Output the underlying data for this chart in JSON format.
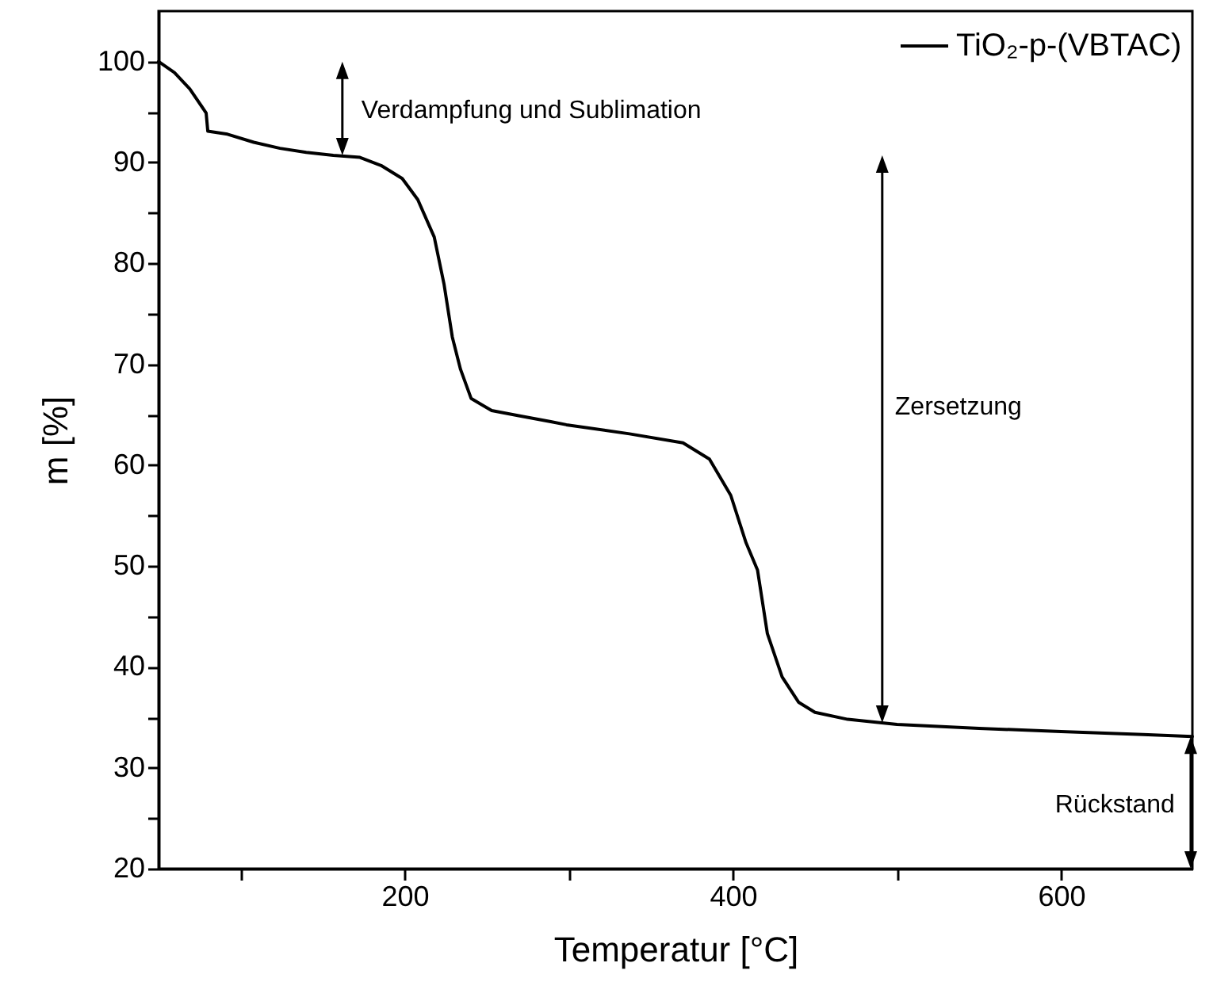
{
  "chart_data": {
    "type": "line",
    "xlabel": "Temperatur [°C]",
    "ylabel": "m [%]",
    "xlim": [
      50,
      680
    ],
    "ylim": [
      20,
      105
    ],
    "xticks": [
      {
        "value": 100,
        "label": null
      },
      200,
      {
        "value": 300,
        "label": null
      },
      400,
      {
        "value": 500,
        "label": null
      },
      600
    ],
    "yticks": [
      20,
      {
        "value": 25,
        "label": null
      },
      30,
      {
        "value": 35,
        "label": null
      },
      40,
      {
        "value": 45,
        "label": null
      },
      50,
      {
        "value": 55,
        "label": null
      },
      60,
      {
        "value": 65,
        "label": null
      },
      70,
      {
        "value": 75,
        "label": null
      },
      80,
      {
        "value": 85,
        "label": null
      },
      90,
      {
        "value": 95,
        "label": null
      },
      100
    ],
    "grid": false,
    "legend": "top right",
    "line_style": "solid",
    "series": [
      {
        "name": "TiO₂-p-(VBTAC)",
        "color": "#000000",
        "x": [
          50,
          59.7,
          69,
          79,
          80,
          92,
          108,
          124,
          140,
          156.5,
          172.7,
          185.6,
          198.5,
          208,
          218,
          224,
          229,
          234,
          240.5,
          253,
          269.5,
          289,
          298.5,
          337,
          369.6,
          385.7,
          398.7,
          408,
          415,
          421,
          430,
          440,
          450,
          470,
          500,
          550,
          600,
          650,
          680
        ],
        "values": [
          100,
          98.9,
          97.3,
          94.9,
          93.1,
          92.8,
          92.0,
          91.4,
          91.0,
          90.7,
          90.5,
          89.7,
          88.4,
          86.3,
          82.6,
          77.9,
          72.7,
          69.5,
          66.6,
          65.4,
          64.9,
          64.3,
          64.0,
          63.1,
          62.2,
          60.6,
          57.0,
          52.3,
          49.6,
          43.3,
          39.0,
          36.5,
          35.5,
          34.8,
          34.3,
          33.9,
          33.6,
          33.3,
          33.1
        ]
      }
    ],
    "annotations": [
      {
        "text": "Verdampfung und Sublimation",
        "x": 162,
        "y": 90.7
      },
      "Zersetzung",
      {
        "text": "Rückstand",
        "x": 679,
        "y": 33.1
      }
    ]
  }
}
